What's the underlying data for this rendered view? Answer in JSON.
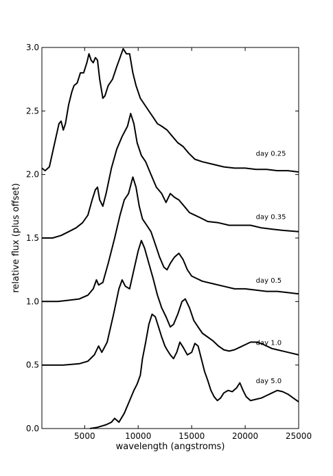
{
  "chart_data": {
    "type": "line",
    "xlabel": "wavelength (angstroms)",
    "ylabel": "relative flux (plus offset)",
    "xlim": [
      1000,
      25000
    ],
    "ylim": [
      0.0,
      3.0
    ],
    "x_ticks": [
      5000,
      10000,
      15000,
      20000,
      25000
    ],
    "x_tick_labels": [
      "5000",
      "10000",
      "15000",
      "20000",
      "25000"
    ],
    "y_ticks": [
      0.0,
      0.5,
      1.0,
      1.5,
      2.0,
      2.5,
      3.0
    ],
    "y_tick_labels": [
      "0.0",
      "0.5",
      "1.0",
      "1.5",
      "2.0",
      "2.5",
      "3.0"
    ],
    "grid": false,
    "line_color": "#000000",
    "series": [
      {
        "name": "day 0.25",
        "label_at": [
          21000,
          2.17
        ],
        "points": [
          [
            1000,
            2.05
          ],
          [
            1300,
            2.03
          ],
          [
            1700,
            2.06
          ],
          [
            2200,
            2.25
          ],
          [
            2600,
            2.4
          ],
          [
            2800,
            2.42
          ],
          [
            3000,
            2.35
          ],
          [
            3200,
            2.4
          ],
          [
            3500,
            2.55
          ],
          [
            3800,
            2.65
          ],
          [
            4000,
            2.7
          ],
          [
            4300,
            2.72
          ],
          [
            4600,
            2.8
          ],
          [
            4900,
            2.8
          ],
          [
            5200,
            2.88
          ],
          [
            5400,
            2.95
          ],
          [
            5600,
            2.9
          ],
          [
            5800,
            2.88
          ],
          [
            6000,
            2.92
          ],
          [
            6200,
            2.9
          ],
          [
            6400,
            2.75
          ],
          [
            6700,
            2.6
          ],
          [
            6900,
            2.62
          ],
          [
            7200,
            2.7
          ],
          [
            7600,
            2.75
          ],
          [
            8000,
            2.85
          ],
          [
            8300,
            2.92
          ],
          [
            8600,
            2.99
          ],
          [
            8900,
            2.95
          ],
          [
            9200,
            2.95
          ],
          [
            9500,
            2.8
          ],
          [
            9800,
            2.7
          ],
          [
            10200,
            2.6
          ],
          [
            10600,
            2.55
          ],
          [
            11000,
            2.5
          ],
          [
            11400,
            2.45
          ],
          [
            11800,
            2.4
          ],
          [
            12200,
            2.38
          ],
          [
            12700,
            2.35
          ],
          [
            13200,
            2.3
          ],
          [
            13700,
            2.25
          ],
          [
            14200,
            2.22
          ],
          [
            14700,
            2.17
          ],
          [
            15300,
            2.12
          ],
          [
            16000,
            2.1
          ],
          [
            17000,
            2.08
          ],
          [
            18000,
            2.06
          ],
          [
            19000,
            2.05
          ],
          [
            20000,
            2.05
          ],
          [
            21000,
            2.04
          ],
          [
            22000,
            2.04
          ],
          [
            23000,
            2.03
          ],
          [
            24000,
            2.03
          ],
          [
            25000,
            2.02
          ]
        ]
      },
      {
        "name": "day 0.35",
        "label_at": [
          21000,
          1.67
        ],
        "points": [
          [
            1000,
            1.5
          ],
          [
            2000,
            1.5
          ],
          [
            2800,
            1.52
          ],
          [
            3500,
            1.55
          ],
          [
            4200,
            1.58
          ],
          [
            4800,
            1.62
          ],
          [
            5300,
            1.68
          ],
          [
            5700,
            1.8
          ],
          [
            6000,
            1.88
          ],
          [
            6200,
            1.9
          ],
          [
            6400,
            1.8
          ],
          [
            6700,
            1.75
          ],
          [
            7000,
            1.85
          ],
          [
            7500,
            2.05
          ],
          [
            8000,
            2.2
          ],
          [
            8500,
            2.3
          ],
          [
            9000,
            2.38
          ],
          [
            9300,
            2.48
          ],
          [
            9600,
            2.4
          ],
          [
            9900,
            2.25
          ],
          [
            10300,
            2.15
          ],
          [
            10700,
            2.1
          ],
          [
            11200,
            2.0
          ],
          [
            11700,
            1.9
          ],
          [
            12200,
            1.85
          ],
          [
            12600,
            1.78
          ],
          [
            13000,
            1.85
          ],
          [
            13400,
            1.82
          ],
          [
            13800,
            1.8
          ],
          [
            14300,
            1.75
          ],
          [
            14800,
            1.7
          ],
          [
            15300,
            1.68
          ],
          [
            15800,
            1.66
          ],
          [
            16500,
            1.63
          ],
          [
            17500,
            1.62
          ],
          [
            18500,
            1.6
          ],
          [
            19500,
            1.6
          ],
          [
            20500,
            1.6
          ],
          [
            21500,
            1.58
          ],
          [
            22500,
            1.57
          ],
          [
            23500,
            1.56
          ],
          [
            25000,
            1.55
          ]
        ]
      },
      {
        "name": "day 0.5",
        "label_at": [
          21000,
          1.17
        ],
        "points": [
          [
            1000,
            1.0
          ],
          [
            2500,
            1.0
          ],
          [
            3500,
            1.01
          ],
          [
            4500,
            1.02
          ],
          [
            5300,
            1.05
          ],
          [
            5800,
            1.1
          ],
          [
            6100,
            1.17
          ],
          [
            6300,
            1.13
          ],
          [
            6700,
            1.15
          ],
          [
            7200,
            1.3
          ],
          [
            7800,
            1.5
          ],
          [
            8300,
            1.68
          ],
          [
            8700,
            1.8
          ],
          [
            9100,
            1.85
          ],
          [
            9500,
            1.98
          ],
          [
            9800,
            1.9
          ],
          [
            10100,
            1.75
          ],
          [
            10400,
            1.65
          ],
          [
            10800,
            1.6
          ],
          [
            11200,
            1.55
          ],
          [
            11600,
            1.45
          ],
          [
            12000,
            1.35
          ],
          [
            12400,
            1.27
          ],
          [
            12700,
            1.25
          ],
          [
            13000,
            1.3
          ],
          [
            13400,
            1.35
          ],
          [
            13800,
            1.38
          ],
          [
            14200,
            1.33
          ],
          [
            14600,
            1.25
          ],
          [
            15000,
            1.2
          ],
          [
            15500,
            1.18
          ],
          [
            16000,
            1.16
          ],
          [
            17000,
            1.14
          ],
          [
            18000,
            1.12
          ],
          [
            19000,
            1.1
          ],
          [
            20000,
            1.1
          ],
          [
            21000,
            1.09
          ],
          [
            22000,
            1.08
          ],
          [
            23000,
            1.08
          ],
          [
            24000,
            1.07
          ],
          [
            25000,
            1.06
          ]
        ]
      },
      {
        "name": "day 1.0",
        "label_at": [
          21000,
          0.68
        ],
        "points": [
          [
            1000,
            0.5
          ],
          [
            3000,
            0.5
          ],
          [
            4500,
            0.51
          ],
          [
            5300,
            0.53
          ],
          [
            5900,
            0.58
          ],
          [
            6300,
            0.65
          ],
          [
            6600,
            0.6
          ],
          [
            7100,
            0.68
          ],
          [
            7700,
            0.9
          ],
          [
            8200,
            1.1
          ],
          [
            8500,
            1.17
          ],
          [
            8800,
            1.12
          ],
          [
            9200,
            1.1
          ],
          [
            9600,
            1.25
          ],
          [
            10000,
            1.4
          ],
          [
            10300,
            1.48
          ],
          [
            10600,
            1.42
          ],
          [
            11000,
            1.3
          ],
          [
            11400,
            1.18
          ],
          [
            11800,
            1.05
          ],
          [
            12200,
            0.95
          ],
          [
            12600,
            0.88
          ],
          [
            13000,
            0.8
          ],
          [
            13300,
            0.82
          ],
          [
            13700,
            0.9
          ],
          [
            14100,
            1.0
          ],
          [
            14400,
            1.02
          ],
          [
            14800,
            0.95
          ],
          [
            15200,
            0.85
          ],
          [
            15600,
            0.8
          ],
          [
            16000,
            0.75
          ],
          [
            16500,
            0.72
          ],
          [
            17000,
            0.69
          ],
          [
            17500,
            0.65
          ],
          [
            18000,
            0.62
          ],
          [
            18500,
            0.61
          ],
          [
            19000,
            0.62
          ],
          [
            19500,
            0.64
          ],
          [
            20000,
            0.66
          ],
          [
            20500,
            0.68
          ],
          [
            21000,
            0.68
          ],
          [
            21500,
            0.67
          ],
          [
            22000,
            0.65
          ],
          [
            22500,
            0.63
          ],
          [
            23000,
            0.62
          ],
          [
            24000,
            0.6
          ],
          [
            25000,
            0.58
          ]
        ]
      },
      {
        "name": "day 5.0",
        "label_at": [
          21000,
          0.38
        ],
        "points": [
          [
            5500,
            0.0
          ],
          [
            6200,
            0.01
          ],
          [
            7000,
            0.03
          ],
          [
            7500,
            0.05
          ],
          [
            7800,
            0.08
          ],
          [
            8200,
            0.05
          ],
          [
            8700,
            0.12
          ],
          [
            9200,
            0.22
          ],
          [
            9600,
            0.3
          ],
          [
            9900,
            0.35
          ],
          [
            10200,
            0.42
          ],
          [
            10400,
            0.55
          ],
          [
            10700,
            0.68
          ],
          [
            11000,
            0.82
          ],
          [
            11300,
            0.9
          ],
          [
            11600,
            0.88
          ],
          [
            11900,
            0.8
          ],
          [
            12200,
            0.72
          ],
          [
            12500,
            0.65
          ],
          [
            12700,
            0.62
          ],
          [
            13000,
            0.58
          ],
          [
            13300,
            0.55
          ],
          [
            13600,
            0.6
          ],
          [
            13900,
            0.68
          ],
          [
            14200,
            0.64
          ],
          [
            14600,
            0.58
          ],
          [
            15000,
            0.6
          ],
          [
            15300,
            0.67
          ],
          [
            15600,
            0.65
          ],
          [
            15900,
            0.55
          ],
          [
            16200,
            0.45
          ],
          [
            16500,
            0.38
          ],
          [
            16800,
            0.3
          ],
          [
            17100,
            0.25
          ],
          [
            17400,
            0.22
          ],
          [
            17700,
            0.24
          ],
          [
            18000,
            0.28
          ],
          [
            18400,
            0.3
          ],
          [
            18800,
            0.29
          ],
          [
            19200,
            0.32
          ],
          [
            19500,
            0.36
          ],
          [
            19800,
            0.3
          ],
          [
            20100,
            0.25
          ],
          [
            20500,
            0.22
          ],
          [
            21000,
            0.23
          ],
          [
            21500,
            0.24
          ],
          [
            22000,
            0.26
          ],
          [
            22500,
            0.28
          ],
          [
            23000,
            0.3
          ],
          [
            23500,
            0.29
          ],
          [
            24000,
            0.27
          ],
          [
            24500,
            0.24
          ],
          [
            25000,
            0.21
          ]
        ]
      }
    ]
  }
}
